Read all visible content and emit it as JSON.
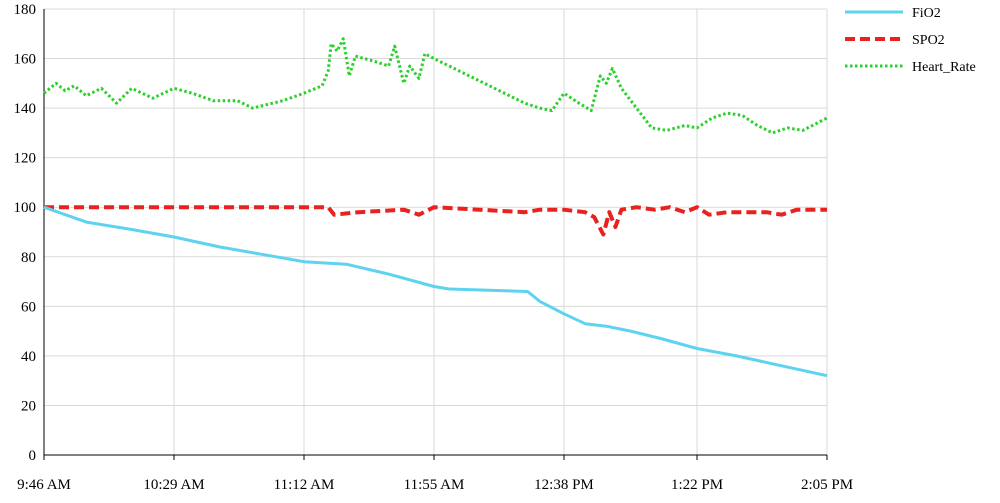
{
  "chart_data": {
    "type": "line",
    "title": "",
    "xlabel": "",
    "ylabel": "",
    "ylim": [
      0,
      180
    ],
    "y_ticks": [
      0,
      20,
      40,
      60,
      80,
      100,
      120,
      140,
      160,
      180
    ],
    "x_ticks": [
      "9:46 AM",
      "10:29 AM",
      "11:12 AM",
      "11:55 AM",
      "12:38 PM",
      "1:22 PM",
      "2:05 PM"
    ],
    "x_range": [
      "9:46 AM",
      "2:05 PM"
    ],
    "grid": "on",
    "legend_position": "right",
    "series": [
      {
        "name": "FiO2",
        "color": "#5dd3ef",
        "style": "solid",
        "points": [
          [
            "9:46 AM",
            100
          ],
          [
            "10:00 AM",
            94
          ],
          [
            "10:15 AM",
            91
          ],
          [
            "10:29 AM",
            88
          ],
          [
            "10:44 AM",
            84
          ],
          [
            "10:58 AM",
            81
          ],
          [
            "11:12 AM",
            78
          ],
          [
            "11:26 AM",
            77
          ],
          [
            "11:40 AM",
            73
          ],
          [
            "11:55 AM",
            68
          ],
          [
            "12:00 PM",
            67
          ],
          [
            "12:26 PM",
            66
          ],
          [
            "12:30 PM",
            62
          ],
          [
            "12:38 PM",
            57
          ],
          [
            "12:45 PM",
            53
          ],
          [
            "12:52 PM",
            52
          ],
          [
            "1:00 PM",
            50
          ],
          [
            "1:10 PM",
            47
          ],
          [
            "1:22 PM",
            43
          ],
          [
            "1:35 PM",
            40
          ],
          [
            "1:50 PM",
            36
          ],
          [
            "2:05 PM",
            32
          ]
        ]
      },
      {
        "name": "SPO2",
        "color": "#e8221f",
        "style": "dashed",
        "points": [
          [
            "9:46 AM",
            100
          ],
          [
            "10:29 AM",
            100
          ],
          [
            "11:12 AM",
            100
          ],
          [
            "11:20 AM",
            100
          ],
          [
            "11:22 AM",
            97
          ],
          [
            "11:30 AM",
            98
          ],
          [
            "11:45 AM",
            99
          ],
          [
            "11:50 AM",
            97
          ],
          [
            "11:55 AM",
            100
          ],
          [
            "12:10 PM",
            99
          ],
          [
            "12:25 PM",
            98
          ],
          [
            "12:30 PM",
            99
          ],
          [
            "12:38 PM",
            99
          ],
          [
            "12:45 PM",
            98
          ],
          [
            "12:48 PM",
            96
          ],
          [
            "12:51 PM",
            89
          ],
          [
            "12:53 PM",
            98
          ],
          [
            "12:55 PM",
            92
          ],
          [
            "12:57 PM",
            99
          ],
          [
            "1:02 PM",
            100
          ],
          [
            "1:08 PM",
            99
          ],
          [
            "1:13 PM",
            100
          ],
          [
            "1:18 PM",
            98
          ],
          [
            "1:22 PM",
            100
          ],
          [
            "1:26 PM",
            97
          ],
          [
            "1:32 PM",
            98
          ],
          [
            "1:45 PM",
            98
          ],
          [
            "1:50 PM",
            97
          ],
          [
            "1:55 PM",
            99
          ],
          [
            "2:05 PM",
            99
          ]
        ]
      },
      {
        "name": "Heart_Rate",
        "color": "#2bd12b",
        "style": "dotted",
        "points": [
          [
            "9:46 AM",
            146
          ],
          [
            "9:50 AM",
            150
          ],
          [
            "9:53 AM",
            147
          ],
          [
            "9:56 AM",
            149
          ],
          [
            "10:00 AM",
            145
          ],
          [
            "10:05 AM",
            148
          ],
          [
            "10:10 AM",
            142
          ],
          [
            "10:15 AM",
            148
          ],
          [
            "10:22 AM",
            144
          ],
          [
            "10:29 AM",
            148
          ],
          [
            "10:35 AM",
            146
          ],
          [
            "10:42 AM",
            143
          ],
          [
            "10:50 AM",
            143
          ],
          [
            "10:55 AM",
            140
          ],
          [
            "11:05 AM",
            143
          ],
          [
            "11:12 AM",
            146
          ],
          [
            "11:18 AM",
            149
          ],
          [
            "11:20 AM",
            155
          ],
          [
            "11:21 AM",
            166
          ],
          [
            "11:23 AM",
            163
          ],
          [
            "11:25 AM",
            168
          ],
          [
            "11:27 AM",
            153
          ],
          [
            "11:29 AM",
            161
          ],
          [
            "11:35 AM",
            159
          ],
          [
            "11:40 AM",
            157
          ],
          [
            "11:42 AM",
            165
          ],
          [
            "11:45 AM",
            150
          ],
          [
            "11:47 AM",
            157
          ],
          [
            "11:50 AM",
            152
          ],
          [
            "11:52 AM",
            162
          ],
          [
            "11:55 AM",
            160
          ],
          [
            "12:05 PM",
            154
          ],
          [
            "12:15 PM",
            148
          ],
          [
            "12:25 PM",
            142
          ],
          [
            "12:30 PM",
            140
          ],
          [
            "12:34 PM",
            139
          ],
          [
            "12:38 PM",
            146
          ],
          [
            "12:43 PM",
            142
          ],
          [
            "12:47 PM",
            139
          ],
          [
            "12:50 PM",
            153
          ],
          [
            "12:52 PM",
            150
          ],
          [
            "12:54 PM",
            156
          ],
          [
            "12:57 PM",
            148
          ],
          [
            "1:02 PM",
            140
          ],
          [
            "1:07 PM",
            132
          ],
          [
            "1:12 PM",
            131
          ],
          [
            "1:18 PM",
            133
          ],
          [
            "1:22 PM",
            132
          ],
          [
            "1:27 PM",
            136
          ],
          [
            "1:32 PM",
            138
          ],
          [
            "1:37 PM",
            137
          ],
          [
            "1:42 PM",
            133
          ],
          [
            "1:47 PM",
            130
          ],
          [
            "1:52 PM",
            132
          ],
          [
            "1:57 PM",
            131
          ],
          [
            "2:05 PM",
            136
          ]
        ]
      }
    ]
  }
}
